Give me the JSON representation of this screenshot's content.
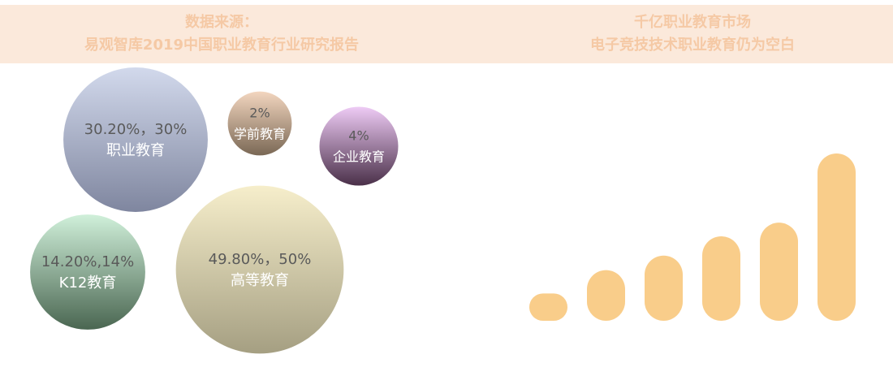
{
  "chart_data": [
    {
      "type": "bubble",
      "title": "数据来源：",
      "subtitle": "易观智库2019中国职业教育行业研究报告",
      "bubbles": [
        {
          "name": "职业教育",
          "value": 30.2,
          "label": "30.20%，30%",
          "colors": [
            "#d2d9ec",
            "#7f869f"
          ]
        },
        {
          "name": "学前教育",
          "value": 2,
          "label": "2%",
          "colors": [
            "#f3d6bf",
            "#7a6855"
          ]
        },
        {
          "name": "企业教育",
          "value": 4,
          "label": "4%",
          "colors": [
            "#eecbf5",
            "#4a3049"
          ]
        },
        {
          "name": "K12教育",
          "value": 14.2,
          "label": "14.20%,14%",
          "colors": [
            "#d0f0da",
            "#4a6651"
          ]
        },
        {
          "name": "高等教育",
          "value": 49.8,
          "label": "49.80%，50%",
          "colors": [
            "#f6eecb",
            "#a59f82"
          ]
        }
      ]
    },
    {
      "type": "bar",
      "title": "千亿职业教育市场",
      "subtitle": "电子竞技技术职业教育仍为空白",
      "values": [
        34,
        63,
        81,
        105,
        122,
        208
      ],
      "ylim": [
        0,
        210
      ],
      "color": "#f9cd8a"
    }
  ]
}
